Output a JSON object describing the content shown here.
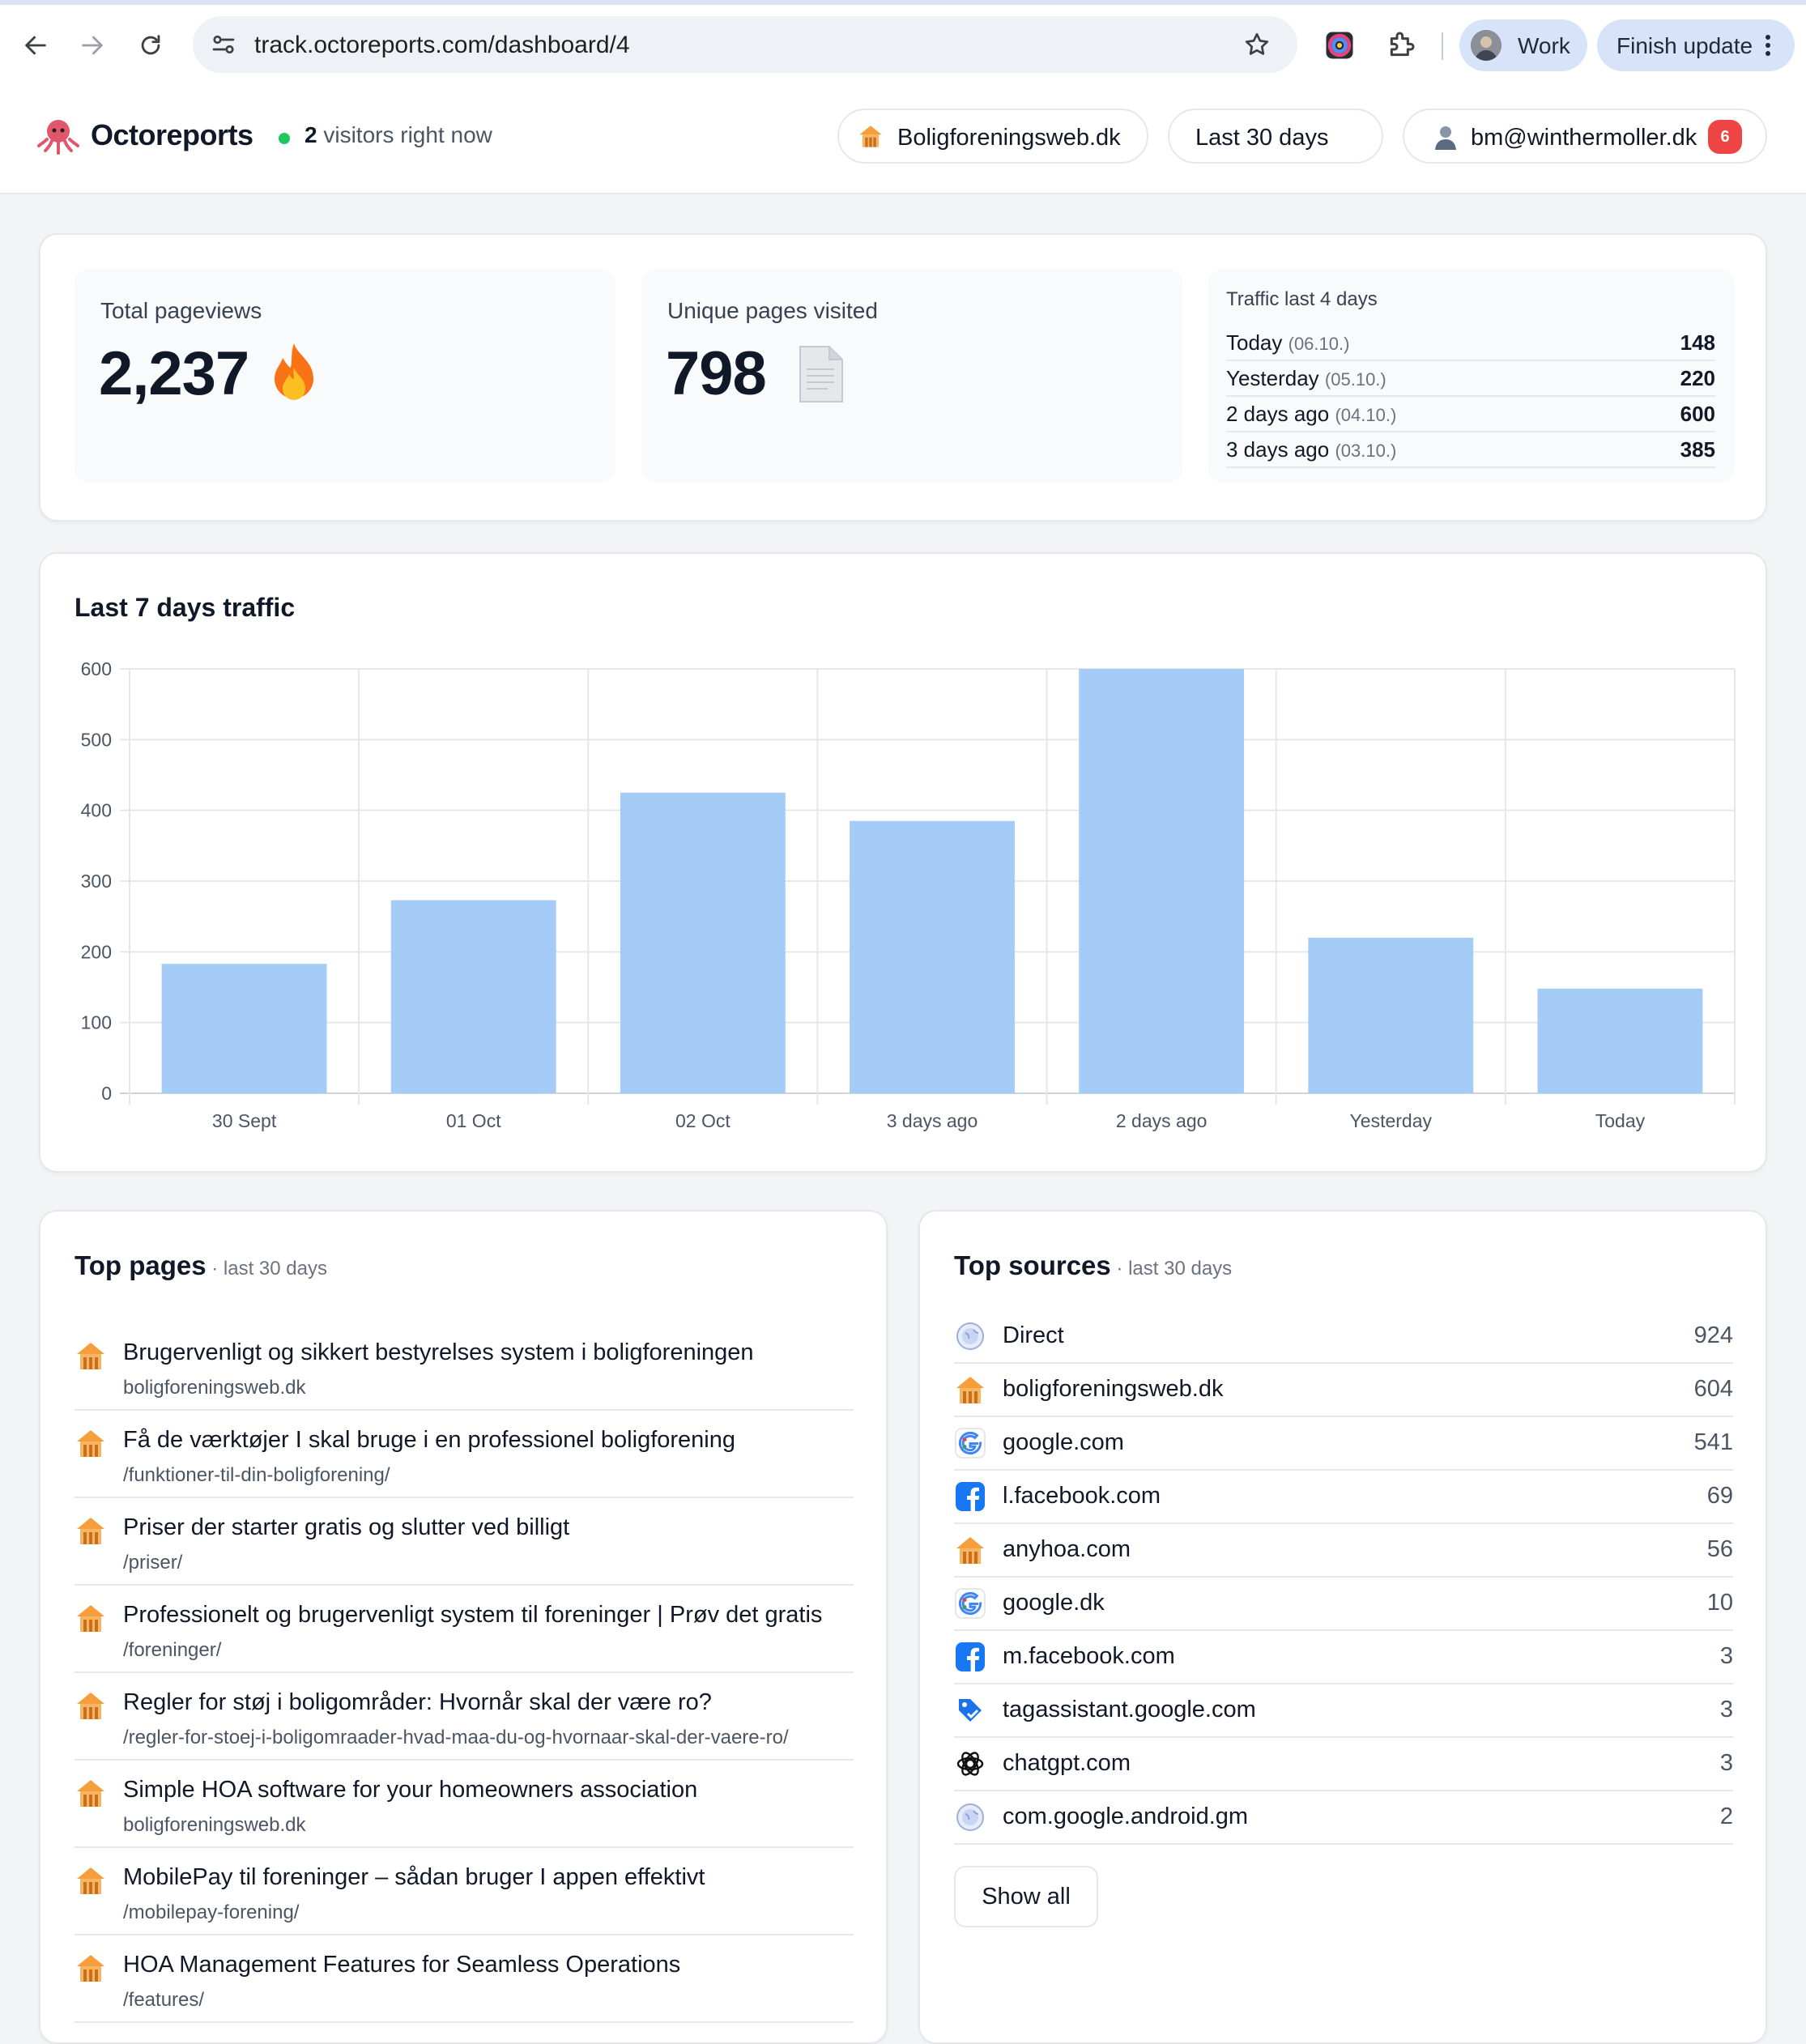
{
  "browser": {
    "url": "track.octoreports.com/dashboard/4",
    "profile_label": "Work",
    "finish_update_label": "Finish update"
  },
  "header": {
    "brand": "Octoreports",
    "live_count": "2",
    "live_text": " visitors right now",
    "site_selector": "Boligforeningsweb.dk",
    "range_selector": "Last 30 days",
    "user_email": "bm@winthermoller.dk",
    "notification_count": "6"
  },
  "stats": {
    "pageviews_label": "Total pageviews",
    "pageviews_value": "2,237",
    "unique_label": "Unique pages visited",
    "unique_value": "798",
    "traffic_title": "Traffic last 4 days",
    "traffic_rows": [
      {
        "name": "Today",
        "date": "(06.10.)",
        "value": "148"
      },
      {
        "name": "Yesterday",
        "date": "(05.10.)",
        "value": "220"
      },
      {
        "name": "2 days ago",
        "date": "(04.10.)",
        "value": "600"
      },
      {
        "name": "3 days ago",
        "date": "(03.10.)",
        "value": "385"
      }
    ]
  },
  "chart_data": {
    "type": "bar",
    "title": "Last 7 days traffic",
    "categories": [
      "30 Sept",
      "01 Oct",
      "02 Oct",
      "3 days ago",
      "2 days ago",
      "Yesterday",
      "Today"
    ],
    "values": [
      183,
      273,
      425,
      385,
      600,
      220,
      148
    ],
    "ylim": [
      0,
      600
    ],
    "yticks": [
      0,
      100,
      200,
      300,
      400,
      500,
      600
    ],
    "grid": true,
    "bar_color": "#a5cbf7",
    "xlabel": "",
    "ylabel": ""
  },
  "top_pages": {
    "title": "Top pages",
    "subtitle": " · last 30 days",
    "items": [
      {
        "title": "Brugervenligt og sikkert bestyrelses system i boligforeningen",
        "path": "boligforeningsweb.dk"
      },
      {
        "title": "Få de værktøjer I skal bruge i en professionel boligforening",
        "path": "/funktioner-til-din-boligforening/"
      },
      {
        "title": "Priser der starter gratis og slutter ved billigt",
        "path": "/priser/"
      },
      {
        "title": "Professionelt og brugervenligt system til foreninger | Prøv det gratis",
        "path": "/foreninger/"
      },
      {
        "title": "Regler for støj i boligområder: Hvornår skal der være ro?",
        "path": "/regler-for-stoej-i-boligomraader-hvad-maa-du-og-hvornaar-skal-der-vaere-ro/"
      },
      {
        "title": "Simple HOA software for your homeowners association",
        "path": "boligforeningsweb.dk"
      },
      {
        "title": "MobilePay til foreninger – sådan bruger I appen effektivt",
        "path": "/mobilepay-forening/"
      },
      {
        "title": "HOA Management Features for Seamless Operations",
        "path": "/features/"
      }
    ]
  },
  "top_sources": {
    "title": "Top sources",
    "subtitle": " · last 30 days",
    "show_all_label": "Show all",
    "items": [
      {
        "name": "Direct",
        "value": "924",
        "icon": "globe-icon"
      },
      {
        "name": "boligforeningsweb.dk",
        "value": "604",
        "icon": "house-icon"
      },
      {
        "name": "google.com",
        "value": "541",
        "icon": "google-icon"
      },
      {
        "name": "l.facebook.com",
        "value": "69",
        "icon": "facebook-icon"
      },
      {
        "name": "anyhoa.com",
        "value": "56",
        "icon": "house-icon"
      },
      {
        "name": "google.dk",
        "value": "10",
        "icon": "google-icon"
      },
      {
        "name": "m.facebook.com",
        "value": "3",
        "icon": "facebook-icon"
      },
      {
        "name": "tagassistant.google.com",
        "value": "3",
        "icon": "tag-icon"
      },
      {
        "name": "chatgpt.com",
        "value": "3",
        "icon": "openai-icon"
      },
      {
        "name": "com.google.android.gm",
        "value": "2",
        "icon": "globe-icon"
      }
    ]
  },
  "colors": {
    "accent_green": "#22c55e",
    "badge_red": "#ef4444",
    "bar_blue": "#a5cbf7",
    "house_orange": "#f59e3b"
  }
}
